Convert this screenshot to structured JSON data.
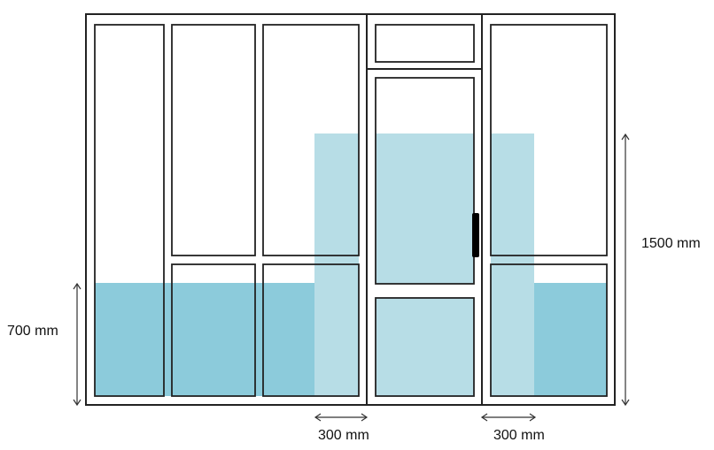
{
  "diagram": {
    "dimensions": {
      "left_height": "700 mm",
      "right_height": "1500 mm",
      "bottom_width_left": "300 mm",
      "bottom_width_right": "300 mm"
    },
    "colors": {
      "frame_stroke": "#222222",
      "glass": "#ffffff",
      "band_dark": "#8ccbdb",
      "band_light": "#b7dde6"
    }
  }
}
